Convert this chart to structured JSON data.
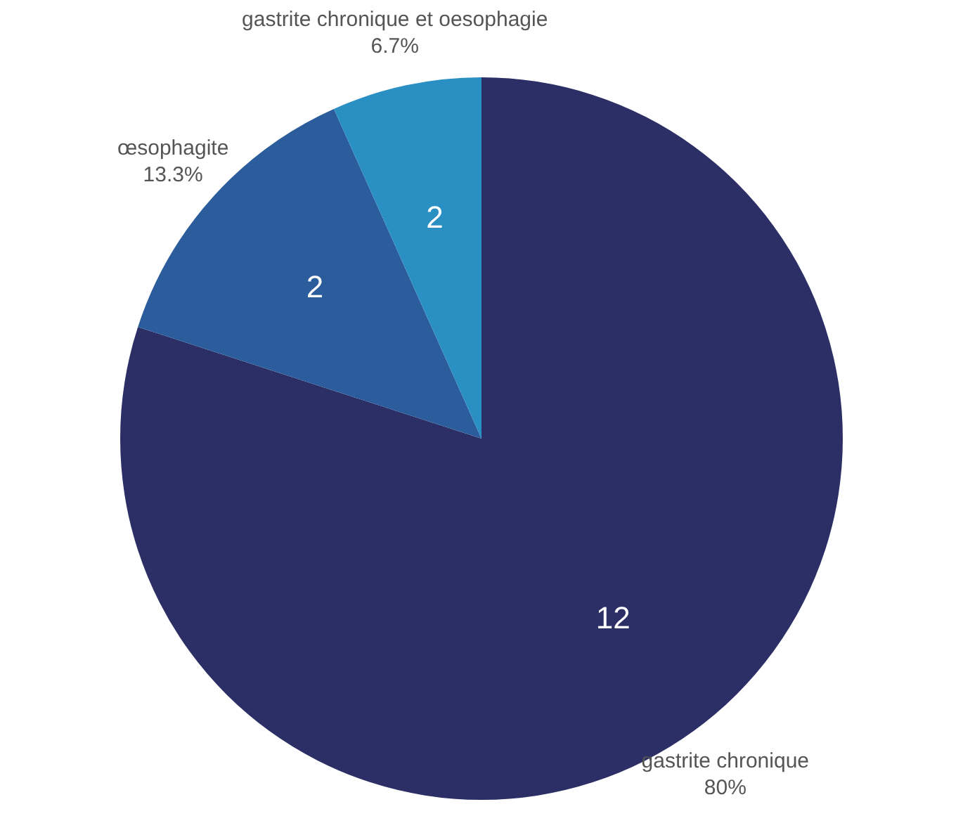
{
  "chart_data": {
    "type": "pie",
    "categories": [
      "gastrite chronique",
      "œsophagite",
      "gastrite chronique et oesophagie"
    ],
    "values": [
      80,
      13.3,
      6.7
    ],
    "colors": [
      "#2b2f66",
      "#2b5c9c",
      "#2a8fc3"
    ],
    "value_labels": [
      "80%",
      "13.3%",
      "6.7%"
    ],
    "annotations": [
      "12",
      "2",
      "2"
    ],
    "legend": false
  }
}
